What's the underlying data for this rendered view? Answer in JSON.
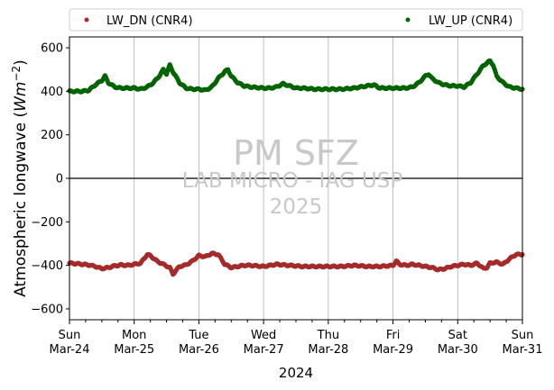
{
  "chart_data": {
    "type": "scatter",
    "xlabel": "2024",
    "ylabel": "Atmospheric longwave (Wm^-2)",
    "ylabel_prefix": "Atmospheric longwave (",
    "ylabel_unit": "Wm",
    "ylabel_exp": "−2",
    "ylabel_suffix": ")",
    "ylim": [
      -650,
      650
    ],
    "yticks": [
      -600,
      -400,
      -200,
      0,
      200,
      400,
      600
    ],
    "x_range_days": [
      0,
      7
    ],
    "xticks": [
      {
        "day": "Sun",
        "date": "Mar-24"
      },
      {
        "day": "Mon",
        "date": "Mar-25"
      },
      {
        "day": "Tue",
        "date": "Mar-26"
      },
      {
        "day": "Wed",
        "date": "Mar-27"
      },
      {
        "day": "Thu",
        "date": "Mar-28"
      },
      {
        "day": "Fri",
        "date": "Mar-29"
      },
      {
        "day": "Sat",
        "date": "Mar-30"
      },
      {
        "day": "Sun",
        "date": "Mar-31"
      }
    ],
    "grid": "vertical",
    "zero_line": true,
    "legend_position": "top, outside",
    "series": [
      {
        "name": "LW_DN (CNR4)",
        "color": "#a52a2a",
        "points": [
          [
            0.0,
            -390
          ],
          [
            0.1,
            -392
          ],
          [
            0.2,
            -395
          ],
          [
            0.3,
            -398
          ],
          [
            0.4,
            -405
          ],
          [
            0.5,
            -415
          ],
          [
            0.6,
            -410
          ],
          [
            0.7,
            -402
          ],
          [
            0.8,
            -398
          ],
          [
            0.9,
            -400
          ],
          [
            1.0,
            -395
          ],
          [
            1.1,
            -390
          ],
          [
            1.2,
            -350
          ],
          [
            1.25,
            -355
          ],
          [
            1.35,
            -380
          ],
          [
            1.45,
            -395
          ],
          [
            1.55,
            -410
          ],
          [
            1.6,
            -440
          ],
          [
            1.7,
            -405
          ],
          [
            1.8,
            -398
          ],
          [
            1.9,
            -380
          ],
          [
            2.0,
            -355
          ],
          [
            2.1,
            -360
          ],
          [
            2.2,
            -345
          ],
          [
            2.3,
            -350
          ],
          [
            2.4,
            -395
          ],
          [
            2.5,
            -410
          ],
          [
            2.6,
            -405
          ],
          [
            2.7,
            -400
          ],
          [
            2.8,
            -400
          ],
          [
            3.0,
            -405
          ],
          [
            3.2,
            -395
          ],
          [
            3.4,
            -400
          ],
          [
            3.6,
            -405
          ],
          [
            3.8,
            -405
          ],
          [
            4.0,
            -405
          ],
          [
            4.2,
            -405
          ],
          [
            4.4,
            -400
          ],
          [
            4.6,
            -405
          ],
          [
            4.8,
            -405
          ],
          [
            5.0,
            -400
          ],
          [
            5.05,
            -380
          ],
          [
            5.1,
            -395
          ],
          [
            5.2,
            -400
          ],
          [
            5.3,
            -395
          ],
          [
            5.4,
            -400
          ],
          [
            5.5,
            -405
          ],
          [
            5.6,
            -410
          ],
          [
            5.7,
            -420
          ],
          [
            5.8,
            -415
          ],
          [
            5.9,
            -405
          ],
          [
            6.0,
            -400
          ],
          [
            6.1,
            -395
          ],
          [
            6.2,
            -400
          ],
          [
            6.3,
            -390
          ],
          [
            6.4,
            -415
          ],
          [
            6.45,
            -410
          ],
          [
            6.5,
            -390
          ],
          [
            6.6,
            -385
          ],
          [
            6.7,
            -395
          ],
          [
            6.8,
            -370
          ],
          [
            6.9,
            -350
          ],
          [
            7.0,
            -350
          ]
        ]
      },
      {
        "name": "LW_UP (CNR4)",
        "color": "#006400",
        "points": [
          [
            0.0,
            400
          ],
          [
            0.1,
            400
          ],
          [
            0.2,
            400
          ],
          [
            0.3,
            405
          ],
          [
            0.4,
            430
          ],
          [
            0.5,
            450
          ],
          [
            0.55,
            470
          ],
          [
            0.6,
            440
          ],
          [
            0.7,
            420
          ],
          [
            0.8,
            415
          ],
          [
            0.9,
            415
          ],
          [
            1.0,
            415
          ],
          [
            1.1,
            410
          ],
          [
            1.2,
            420
          ],
          [
            1.3,
            440
          ],
          [
            1.4,
            475
          ],
          [
            1.45,
            500
          ],
          [
            1.5,
            480
          ],
          [
            1.55,
            520
          ],
          [
            1.6,
            490
          ],
          [
            1.7,
            440
          ],
          [
            1.8,
            415
          ],
          [
            1.9,
            410
          ],
          [
            2.0,
            410
          ],
          [
            2.1,
            405
          ],
          [
            2.2,
            420
          ],
          [
            2.3,
            460
          ],
          [
            2.4,
            490
          ],
          [
            2.45,
            500
          ],
          [
            2.5,
            470
          ],
          [
            2.6,
            440
          ],
          [
            2.7,
            425
          ],
          [
            2.8,
            420
          ],
          [
            3.0,
            415
          ],
          [
            3.1,
            415
          ],
          [
            3.2,
            420
          ],
          [
            3.3,
            435
          ],
          [
            3.4,
            425
          ],
          [
            3.5,
            415
          ],
          [
            3.6,
            415
          ],
          [
            3.8,
            410
          ],
          [
            4.0,
            410
          ],
          [
            4.2,
            410
          ],
          [
            4.4,
            415
          ],
          [
            4.6,
            425
          ],
          [
            4.7,
            430
          ],
          [
            4.8,
            415
          ],
          [
            5.0,
            415
          ],
          [
            5.2,
            415
          ],
          [
            5.3,
            420
          ],
          [
            5.4,
            440
          ],
          [
            5.5,
            470
          ],
          [
            5.55,
            480
          ],
          [
            5.6,
            460
          ],
          [
            5.7,
            440
          ],
          [
            5.8,
            430
          ],
          [
            5.9,
            425
          ],
          [
            6.0,
            425
          ],
          [
            6.1,
            420
          ],
          [
            6.2,
            440
          ],
          [
            6.3,
            480
          ],
          [
            6.4,
            520
          ],
          [
            6.5,
            540
          ],
          [
            6.55,
            520
          ],
          [
            6.6,
            470
          ],
          [
            6.7,
            440
          ],
          [
            6.8,
            420
          ],
          [
            6.9,
            415
          ],
          [
            7.0,
            410
          ]
        ]
      }
    ]
  },
  "watermark": {
    "title": "PM SFZ",
    "line1": "LAB MICRO - IAG USP",
    "line2": "2025"
  }
}
